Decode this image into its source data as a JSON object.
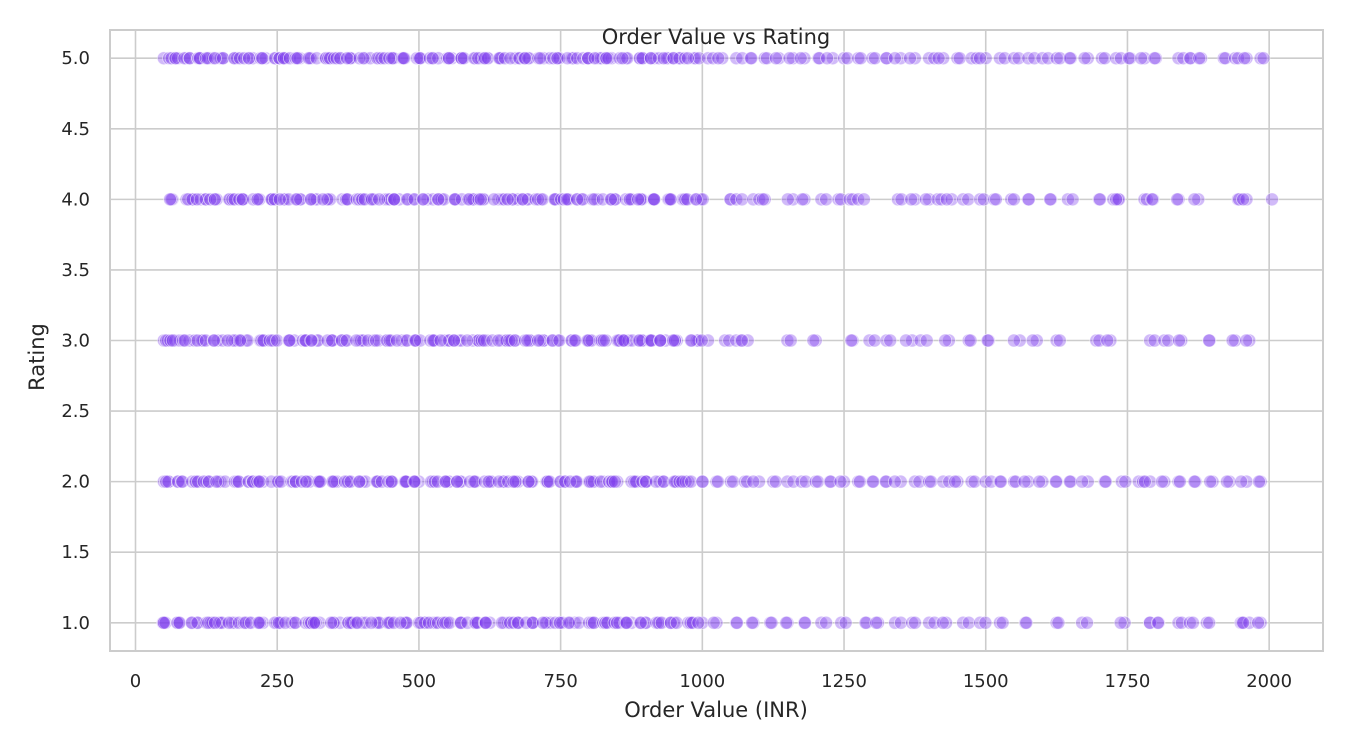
{
  "chart_data": {
    "type": "scatter",
    "title": "Order Value vs Rating",
    "xlabel": "Order Value (INR)",
    "ylabel": "Rating",
    "xlim": [
      -45,
      2095
    ],
    "ylim": [
      0.8,
      5.2
    ],
    "xticks": [
      0,
      250,
      500,
      750,
      1000,
      1250,
      1500,
      1750,
      2000
    ],
    "xtick_labels": [
      "0",
      "250",
      "500",
      "750",
      "1000",
      "1250",
      "1500",
      "1750",
      "2000"
    ],
    "yticks": [
      1.0,
      1.5,
      2.0,
      2.5,
      3.0,
      3.5,
      4.0,
      4.5,
      5.0
    ],
    "ytick_labels": [
      "1.0",
      "1.5",
      "2.0",
      "2.5",
      "3.0",
      "3.5",
      "4.0",
      "4.5",
      "5.0"
    ],
    "grid": true,
    "color": "#7c3aed",
    "point_opacity": 0.35,
    "series": [
      {
        "rating": 5.0,
        "x_range": [
          48,
          1990
        ],
        "x": [
          50,
          70,
          90,
          110,
          130,
          150,
          175,
          200,
          220,
          245,
          265,
          290,
          310,
          335,
          360,
          380,
          405,
          430,
          455,
          475,
          500,
          525,
          550,
          575,
          600,
          620,
          645,
          670,
          695,
          720,
          745,
          770,
          790,
          815,
          840,
          865,
          890,
          915,
          940,
          960,
          985,
          1010,
          1035,
          1060,
          1085,
          1110,
          1135,
          1160,
          1180,
          1205,
          1230,
          1250,
          1275,
          1300,
          1325,
          1350,
          1375,
          1400,
          1425,
          1450,
          1475,
          1500,
          1525,
          1550,
          1575,
          1600,
          1625,
          1650,
          1680,
          1705,
          1730,
          1755,
          1780,
          1800,
          1840,
          1860,
          1880,
          1920,
          1940,
          1960,
          1985
        ]
      },
      {
        "rating": 4.0,
        "x_range": [
          60,
          2005
        ],
        "x": [
          65,
          90,
          115,
          140,
          165,
          190,
          215,
          240,
          265,
          290,
          315,
          340,
          365,
          390,
          415,
          440,
          465,
          490,
          515,
          540,
          565,
          590,
          615,
          640,
          665,
          690,
          715,
          740,
          765,
          790,
          815,
          840,
          865,
          890,
          915,
          940,
          965,
          990,
          1050,
          1060,
          1090,
          1110,
          1160,
          1180,
          1210,
          1240,
          1260,
          1275,
          1345,
          1375,
          1400,
          1415,
          1440,
          1460,
          1490,
          1515,
          1545,
          1575,
          1615,
          1645,
          1700,
          1725,
          1735,
          1780,
          1795,
          1840,
          1875,
          1945,
          1960,
          2005
        ]
      },
      {
        "rating": 3.0,
        "x_range": [
          48,
          1965
        ],
        "x": [
          50,
          70,
          95,
          120,
          145,
          170,
          195,
          220,
          245,
          270,
          295,
          320,
          345,
          370,
          395,
          420,
          445,
          470,
          495,
          520,
          545,
          570,
          595,
          620,
          645,
          670,
          695,
          720,
          745,
          770,
          800,
          820,
          850,
          870,
          890,
          910,
          935,
          955,
          990,
          1010,
          1040,
          1060,
          1080,
          1150,
          1200,
          1265,
          1295,
          1325,
          1370,
          1385,
          1435,
          1470,
          1505,
          1560,
          1590,
          1625,
          1695,
          1720,
          1790,
          1815,
          1845,
          1895,
          1940,
          1965
        ]
      },
      {
        "rating": 2.0,
        "x_range": [
          48,
          1985
        ],
        "x": [
          50,
          75,
          100,
          125,
          150,
          175,
          200,
          225,
          250,
          275,
          300,
          325,
          350,
          375,
          400,
          425,
          450,
          475,
          500,
          525,
          550,
          575,
          600,
          625,
          650,
          675,
          700,
          725,
          750,
          775,
          800,
          825,
          850,
          875,
          900,
          925,
          950,
          975,
          1000,
          1025,
          1050,
          1075,
          1100,
          1125,
          1150,
          1175,
          1200,
          1225,
          1250,
          1275,
          1300,
          1325,
          1350,
          1375,
          1400,
          1425,
          1450,
          1475,
          1500,
          1525,
          1550,
          1575,
          1600,
          1625,
          1650,
          1680,
          1710,
          1740,
          1770,
          1790,
          1815,
          1840,
          1870,
          1900,
          1930,
          1960,
          1985
        ]
      },
      {
        "rating": 1.0,
        "x_range": [
          48,
          1985
        ],
        "x": [
          50,
          75,
          100,
          125,
          150,
          175,
          200,
          225,
          250,
          275,
          300,
          325,
          350,
          375,
          400,
          425,
          450,
          475,
          500,
          525,
          550,
          575,
          600,
          625,
          650,
          675,
          700,
          725,
          750,
          775,
          800,
          825,
          850,
          875,
          900,
          925,
          950,
          975,
          1000,
          1025,
          1060,
          1090,
          1120,
          1150,
          1180,
          1210,
          1245,
          1290,
          1310,
          1340,
          1370,
          1400,
          1430,
          1460,
          1490,
          1525,
          1570,
          1625,
          1670,
          1745,
          1790,
          1805,
          1840,
          1860,
          1890,
          1950,
          1965,
          1985
        ]
      }
    ]
  }
}
